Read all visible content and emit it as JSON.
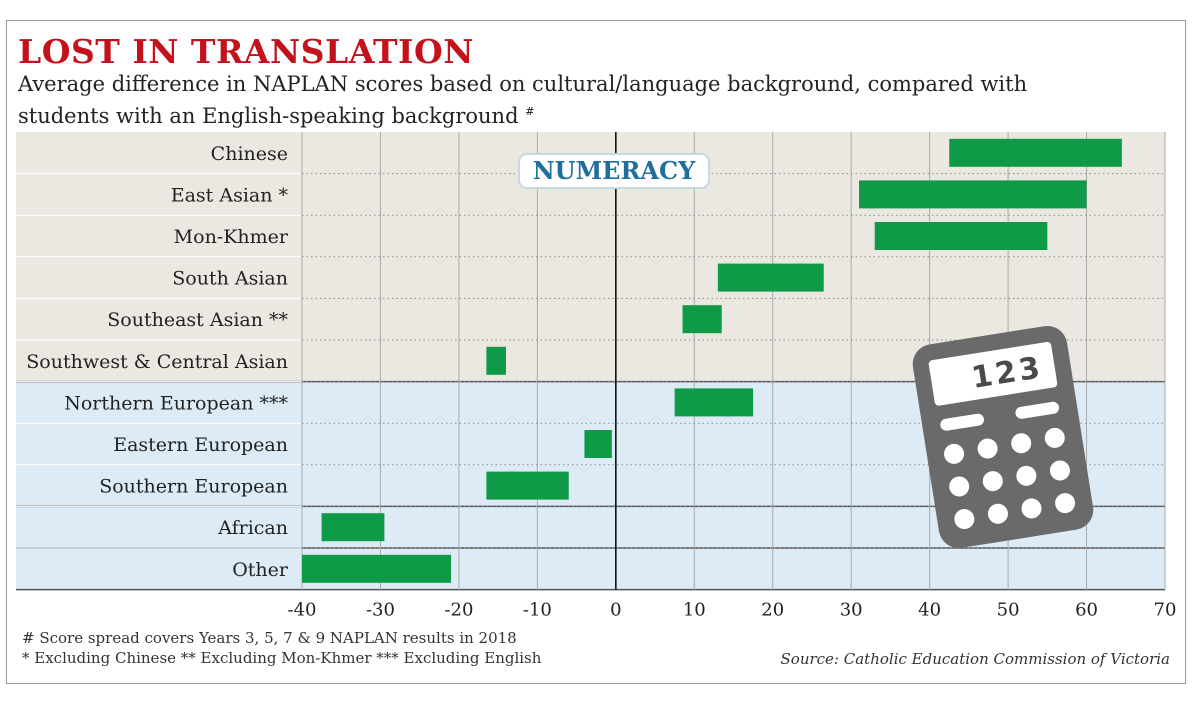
{
  "header": {
    "title": "LOST IN TRANSLATION",
    "subtitle": "Average difference in NAPLAN scores based on cultural/language background, compared with students with an English-speaking background",
    "subtitle_mark": "#"
  },
  "badge": {
    "label": "NUMERACY"
  },
  "calculator": {
    "display": "123"
  },
  "footnotes": {
    "line1": "# Score spread covers Years 3, 5, 7 & 9 NAPLAN results in 2018",
    "line2": "* Excluding Chinese  ** Excluding Mon-Khmer  *** Excluding English"
  },
  "source": "Source: Catholic Education Commission of Victoria",
  "colors": {
    "bar": "#0f9a48",
    "asian_band": "#ebe8e1",
    "european_band": "#dcebf6",
    "grid": "#aaaaaa",
    "title": "#c3121c",
    "badge_text": "#1f6f9e",
    "calculator": "#6a6a6a"
  },
  "chart_data": {
    "type": "bar",
    "orientation": "horizontal",
    "style": "floating range bars",
    "title": "LOST IN TRANSLATION",
    "xlim": [
      -40,
      70
    ],
    "xticks": [
      -40,
      -30,
      -20,
      -10,
      0,
      10,
      20,
      30,
      40,
      50,
      60,
      70
    ],
    "grid": true,
    "categories": [
      "Chinese",
      "East Asian *",
      "Mon-Khmer",
      "South Asian",
      "Southeast Asian **",
      "Southwest & Central Asian",
      "Northern European ***",
      "Eastern European",
      "Southern European",
      "African",
      "Other"
    ],
    "groups": [
      {
        "categories": [
          "Chinese",
          "East Asian *",
          "Mon-Khmer",
          "South Asian",
          "Southeast Asian **",
          "Southwest & Central Asian"
        ],
        "band": "asian"
      },
      {
        "categories": [
          "Northern European ***",
          "Eastern European",
          "Southern European"
        ],
        "band": "european"
      },
      {
        "categories": [
          "African"
        ],
        "band": "european"
      },
      {
        "categories": [
          "Other"
        ],
        "band": "european"
      }
    ],
    "ranges": [
      [
        42.5,
        64.5
      ],
      [
        31,
        60
      ],
      [
        33,
        55
      ],
      [
        13,
        26.5
      ],
      [
        8.5,
        13.5
      ],
      [
        -16.5,
        -14
      ],
      [
        7.5,
        17.5
      ],
      [
        -4,
        -0.5
      ],
      [
        -16.5,
        -6
      ],
      [
        -37.5,
        -29.5
      ],
      [
        -40,
        -21
      ]
    ]
  }
}
